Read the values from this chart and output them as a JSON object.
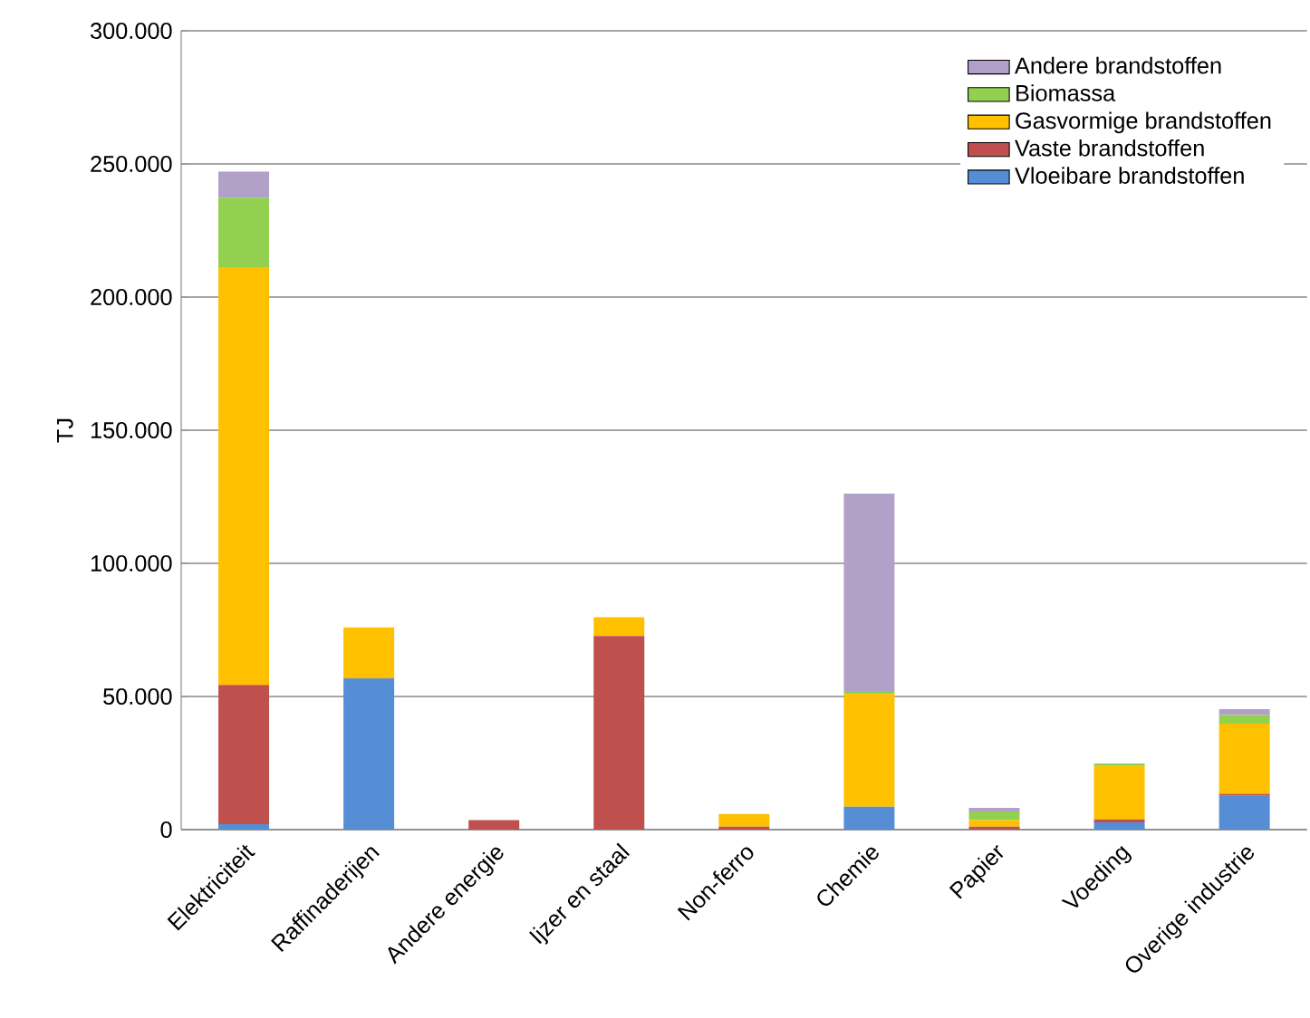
{
  "chart_data": {
    "type": "bar",
    "stacked": true,
    "ylabel": "TJ",
    "categories": [
      "Elektriciteit",
      "Raffinaderijen",
      "Andere energie",
      "Ijzer en staal",
      "Non-ferro",
      "Chemie",
      "Papier",
      "Voeding",
      "Overige industrie"
    ],
    "series": [
      {
        "name": "Vloeibare brandstoffen",
        "color": "#558ed5",
        "values": [
          2000,
          56800,
          0,
          0,
          0,
          8600,
          0,
          2700,
          12700
        ]
      },
      {
        "name": "Vaste brandstoffen",
        "color": "#c0504d",
        "values": [
          52300,
          0,
          3600,
          72700,
          1100,
          0,
          1100,
          1100,
          700
        ]
      },
      {
        "name": "Gasvormige brandstoffen",
        "color": "#ffc000",
        "values": [
          156900,
          19100,
          0,
          7100,
          4800,
          42300,
          2500,
          20100,
          26400
        ]
      },
      {
        "name": "Biomassa",
        "color": "#92d050",
        "values": [
          26100,
          0,
          0,
          0,
          0,
          1100,
          3200,
          900,
          3200
        ]
      },
      {
        "name": "Andere brandstoffen",
        "color": "#b1a0c7",
        "values": [
          9800,
          0,
          0,
          0,
          0,
          74200,
          1400,
          0,
          2200
        ]
      }
    ],
    "ylim": [
      0,
      300000
    ],
    "yticks": [
      0,
      {
        "value": 50000,
        "label": "50.000"
      },
      {
        "value": 100000,
        "label": "100.000"
      },
      {
        "value": 150000,
        "label": "150.000"
      },
      {
        "value": 200000,
        "label": "200.000"
      },
      {
        "value": 250000,
        "label": "250.000"
      },
      {
        "value": 300000,
        "label": "300.000"
      }
    ],
    "grid": "y",
    "legend": "top right"
  }
}
